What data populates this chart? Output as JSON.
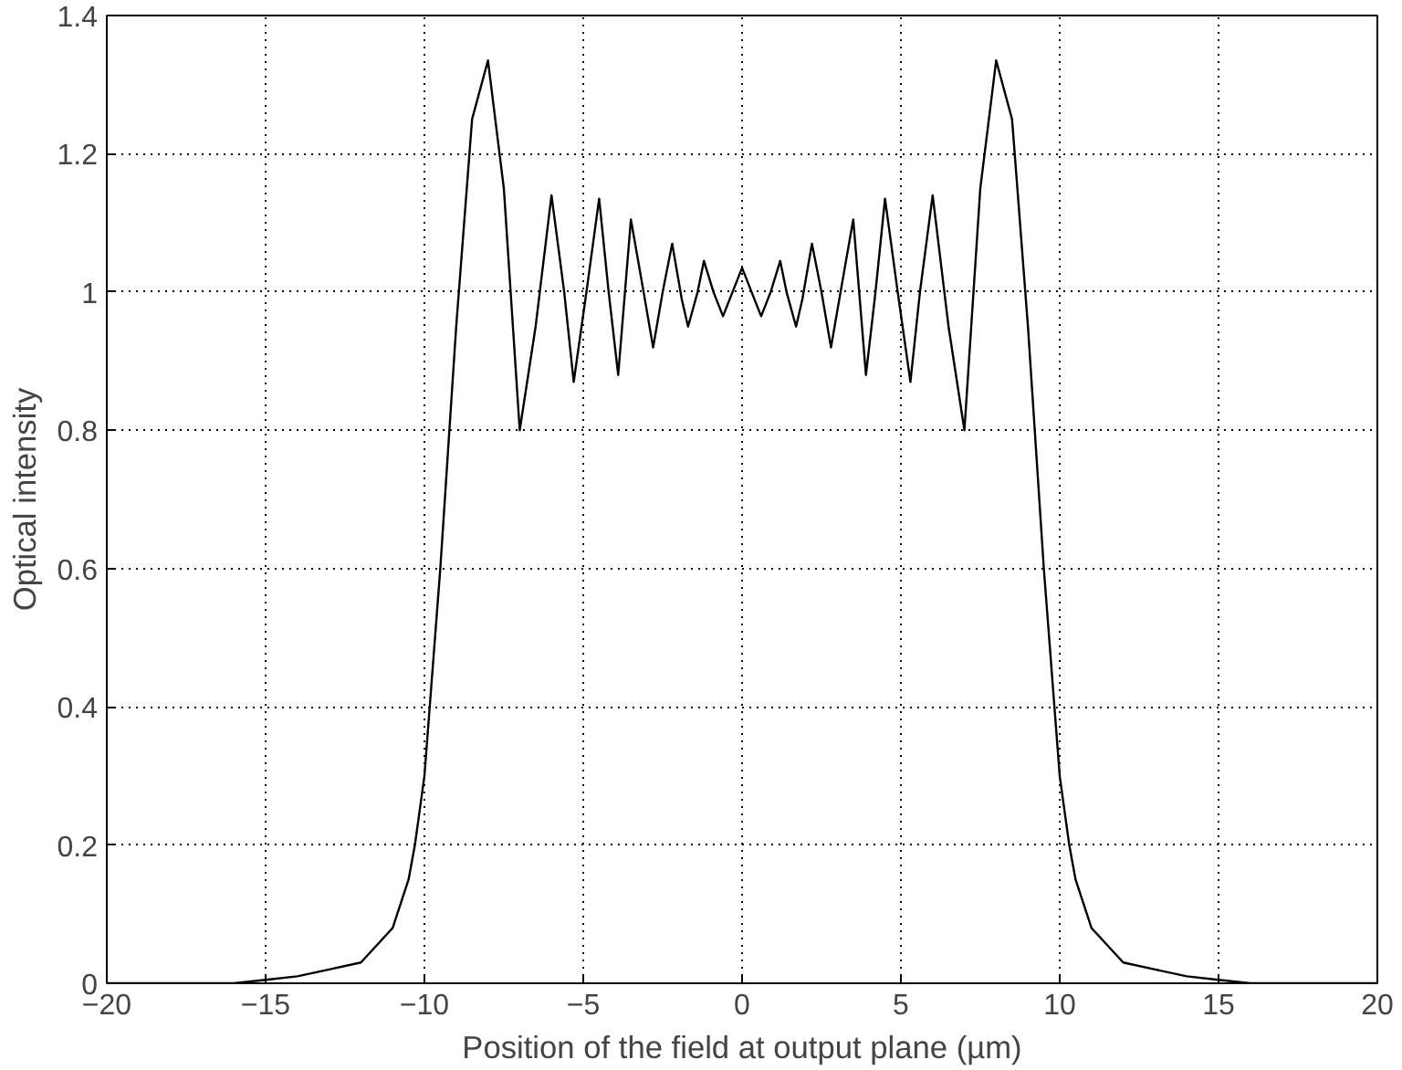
{
  "chart_data": {
    "type": "line",
    "xlabel": "Position of the field at output plane (µm)",
    "ylabel": "Optical intensity",
    "x": [
      -20,
      -16,
      -15,
      -14,
      -13,
      -12,
      -11,
      -10.5,
      -10.3,
      -10,
      -9.5,
      -9,
      -8.5,
      -8,
      -7.5,
      -7,
      -6.5,
      -6,
      -5.6,
      -5.3,
      -4.9,
      -4.5,
      -4.2,
      -3.9,
      -3.5,
      -3.1,
      -2.8,
      -2.5,
      -2.2,
      -1.9,
      -1.7,
      -1.4,
      -1.2,
      -0.9,
      -0.6,
      -0.3,
      0,
      0.3,
      0.6,
      0.9,
      1.2,
      1.4,
      1.7,
      1.9,
      2.2,
      2.5,
      2.8,
      3.1,
      3.5,
      3.9,
      4.2,
      4.5,
      4.9,
      5.3,
      5.6,
      6,
      6.5,
      7,
      7.5,
      8,
      8.5,
      9,
      9.5,
      10,
      10.3,
      10.5,
      11,
      12,
      13,
      14,
      15,
      16,
      20
    ],
    "series": [
      {
        "color": "#000000",
        "values": [
          0,
          0,
          0.005,
          0.01,
          0.02,
          0.03,
          0.08,
          0.15,
          0.2,
          0.3,
          0.6,
          0.95,
          1.25,
          1.335,
          1.15,
          0.8,
          0.95,
          1.14,
          1.0,
          0.87,
          1.0,
          1.135,
          1.0,
          0.88,
          1.105,
          1.0,
          0.92,
          1.0,
          1.07,
          0.99,
          0.95,
          1.0,
          1.045,
          1.0,
          0.965,
          1.0,
          1.035,
          1.0,
          0.965,
          1.0,
          1.045,
          1.0,
          0.95,
          0.99,
          1.07,
          1.0,
          0.92,
          1.0,
          1.105,
          0.88,
          1.0,
          1.135,
          1.0,
          0.87,
          1.0,
          1.14,
          0.95,
          0.8,
          1.15,
          1.335,
          1.25,
          0.95,
          0.6,
          0.3,
          0.2,
          0.15,
          0.08,
          0.03,
          0.02,
          0.01,
          0.005,
          0,
          0
        ]
      }
    ],
    "xlim": [
      -20,
      20
    ],
    "xticks": [
      -20,
      -15,
      -10,
      -5,
      0,
      5,
      10,
      15,
      20
    ],
    "ylim": [
      0,
      1.4
    ],
    "yticks": [
      0,
      0.2,
      0.4,
      0.6,
      0.8,
      1,
      1.2,
      1.4
    ],
    "grid": true,
    "line_style": "solid",
    "marker": "none"
  }
}
